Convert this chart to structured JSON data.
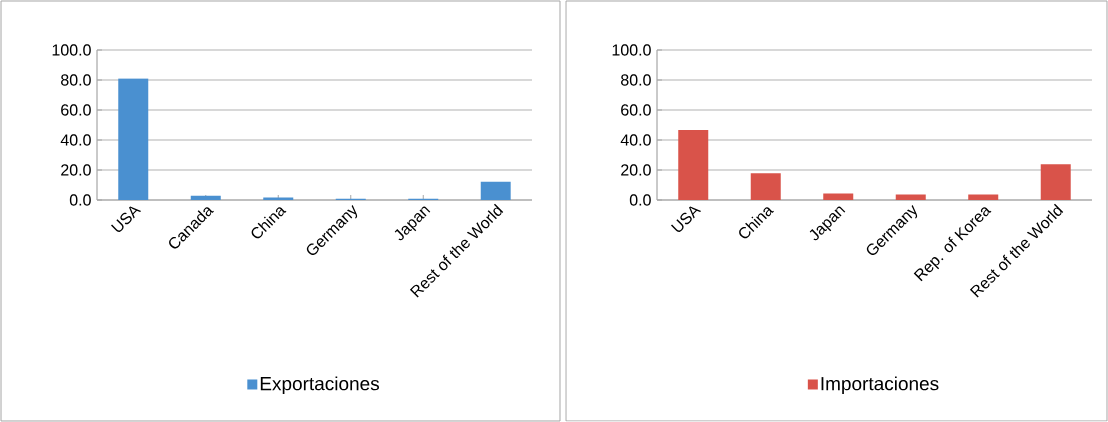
{
  "chart_data": [
    {
      "type": "bar",
      "categories": [
        "USA",
        "Canada",
        "China",
        "Germany",
        "Japan",
        "Rest of the World"
      ],
      "series": [
        {
          "name": "Exportaciones",
          "color": "#4a90d0",
          "values": [
            81,
            2.9,
            1.6,
            0.9,
            0.9,
            12.1
          ]
        }
      ],
      "ylim": [
        0,
        100
      ],
      "yticks": [
        {
          "value": 0,
          "label": "0.0"
        },
        {
          "value": 20,
          "label": "20.0"
        },
        {
          "value": 40,
          "label": "40.0"
        },
        {
          "value": 60,
          "label": "60.0"
        },
        {
          "value": 80,
          "label": "80.0"
        },
        {
          "value": 100,
          "label": "100.0"
        }
      ],
      "grid": "y",
      "legend": "bottom"
    },
    {
      "type": "bar",
      "categories": [
        "USA",
        "China",
        "Japan",
        "Germany",
        "Rep. of Korea",
        "Rest of the World"
      ],
      "series": [
        {
          "name": "Importaciones",
          "color": "#d9534a",
          "values": [
            46.7,
            17.8,
            4.3,
            3.6,
            3.6,
            23.8
          ]
        }
      ],
      "ylim": [
        0,
        100
      ],
      "yticks": [
        {
          "value": 0,
          "label": "0.0"
        },
        {
          "value": 20,
          "label": "20.0"
        },
        {
          "value": 40,
          "label": "40.0"
        },
        {
          "value": 60,
          "label": "60.0"
        },
        {
          "value": 80,
          "label": "80.0"
        },
        {
          "value": 100,
          "label": "100.0"
        }
      ],
      "grid": "y",
      "legend": "bottom"
    }
  ]
}
